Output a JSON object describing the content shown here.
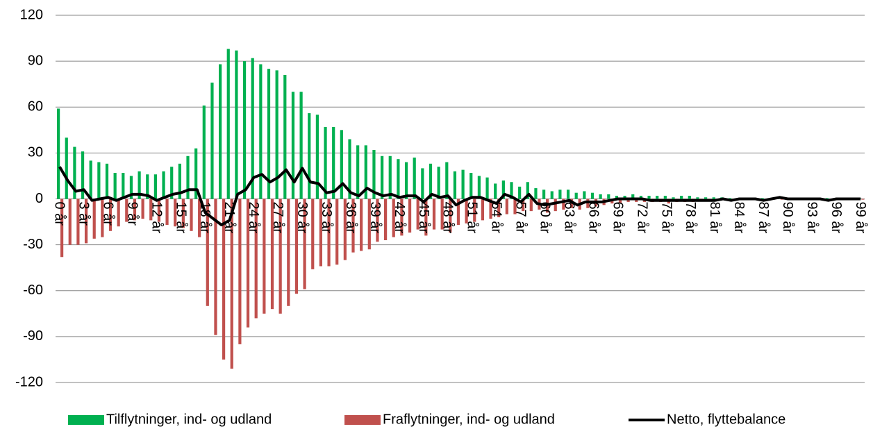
{
  "chart_data": {
    "type": "bar",
    "categories": [
      "0 år",
      null,
      null,
      "3 år",
      null,
      null,
      "6 år",
      null,
      null,
      "9 år",
      null,
      null,
      "12 år",
      null,
      null,
      "15 år",
      null,
      null,
      "18 år",
      null,
      null,
      "21 år",
      null,
      null,
      "24 år",
      null,
      null,
      "27 år",
      null,
      null,
      "30 år",
      null,
      null,
      "33 år",
      null,
      null,
      "36 år",
      null,
      null,
      "39 år",
      null,
      null,
      "42 år",
      null,
      null,
      "45 år",
      null,
      null,
      "48 år",
      null,
      null,
      "51 år",
      null,
      null,
      "54 år",
      null,
      null,
      "57 år",
      null,
      null,
      "60 år",
      null,
      null,
      "63 år",
      null,
      null,
      "66 år",
      null,
      null,
      "69 år",
      null,
      null,
      "72 år",
      null,
      null,
      "75 år",
      null,
      null,
      "78 år",
      null,
      null,
      "81 år",
      null,
      null,
      "84 år",
      null,
      null,
      "87 år",
      null,
      null,
      "90 år",
      null,
      null,
      "93 år",
      null,
      null,
      "96 år",
      null,
      null,
      "99 år"
    ],
    "series": [
      {
        "name": "Tilflytninger, ind- og udland",
        "type": "bar",
        "color": "#00b050",
        "values": [
          59,
          40,
          34,
          31,
          25,
          24,
          23,
          17,
          17,
          15,
          18,
          16,
          16,
          18,
          21,
          23,
          28,
          33,
          61,
          76,
          88,
          98,
          97,
          90,
          92,
          88,
          85,
          84,
          81,
          70,
          70,
          56,
          55,
          47,
          47,
          45,
          39,
          35,
          35,
          32,
          28,
          28,
          26,
          24,
          27,
          20,
          23,
          21,
          24,
          18,
          19,
          17,
          15,
          14,
          10,
          12,
          11,
          8,
          11,
          7,
          6,
          5,
          6,
          6,
          4,
          5,
          4,
          3,
          3,
          2,
          2,
          3,
          2,
          2,
          2,
          2,
          1,
          2,
          2,
          1,
          1,
          1,
          1,
          0.5,
          0.5,
          0.5,
          0.5,
          0.5,
          0.5,
          0.5,
          0.5,
          0.5,
          0.5,
          0.5,
          0.5,
          0.5,
          0.5,
          0.5,
          0.5,
          0.5
        ]
      },
      {
        "name": "Fraflytninger, ind- og udland",
        "type": "bar",
        "color": "#c0504d",
        "values": [
          -38,
          -30,
          -30,
          -29,
          -26,
          -25,
          -21,
          -18,
          -15,
          -14,
          -13,
          -14,
          -15,
          -17,
          -18,
          -19,
          -21,
          -25,
          -70,
          -89,
          -105,
          -111,
          -95,
          -84,
          -78,
          -75,
          -72,
          -75,
          -70,
          -62,
          -59,
          -46,
          -44,
          -44,
          -43,
          -40,
          -35,
          -34,
          -33,
          -28,
          -27,
          -25,
          -24,
          -22,
          -20,
          -24,
          -20,
          -20,
          -22,
          -17,
          -16,
          -15,
          -14,
          -13,
          -12,
          -10,
          -10,
          -8,
          -8,
          -7,
          -9,
          -8,
          -7,
          -6,
          -7,
          -6,
          -5,
          -4,
          -3,
          -3,
          -2,
          -2,
          -2,
          -2,
          -2,
          -3,
          -2,
          -2,
          -2,
          -1,
          -1,
          -1,
          -1,
          -1,
          -0.5,
          -0.5,
          -0.5,
          -0.5,
          -0.5,
          -0.5,
          -0.5,
          -0.5,
          -0.5,
          -0.5,
          -0.5,
          -0.5,
          -0.5,
          -0.5,
          -0.5,
          -0.5
        ]
      },
      {
        "name": "Netto, flyttebalance",
        "type": "line",
        "color": "#000000",
        "values": [
          21,
          12,
          5,
          6,
          -1,
          0,
          1,
          -1,
          1,
          3,
          3,
          2,
          -1,
          1,
          3,
          4,
          6,
          6,
          -9,
          -13,
          -17,
          -14,
          3,
          6,
          14,
          16,
          11,
          14,
          19,
          11,
          20,
          11,
          10,
          4,
          5,
          10,
          4,
          2,
          7,
          4,
          2,
          3,
          1,
          2,
          2,
          -2,
          3,
          1,
          2,
          -4,
          -1,
          1,
          1,
          -1,
          -3,
          3,
          1,
          -2,
          3,
          -3,
          -4,
          -3,
          -2,
          -1,
          -4,
          -2,
          -2,
          -2,
          -1,
          0,
          0,
          0,
          0,
          -1,
          -1,
          -1,
          -1,
          -1,
          -1,
          -1,
          -1,
          -1,
          0,
          -1,
          0,
          0,
          0,
          -1,
          0,
          1,
          0,
          0,
          0,
          0,
          0,
          -1,
          0,
          0,
          0,
          0
        ]
      }
    ],
    "ylim": [
      -120,
      120
    ],
    "yticks": [
      120,
      90,
      60,
      30,
      0,
      -30,
      -60,
      -90,
      -120
    ],
    "grid": true,
    "legend": "bottom"
  }
}
